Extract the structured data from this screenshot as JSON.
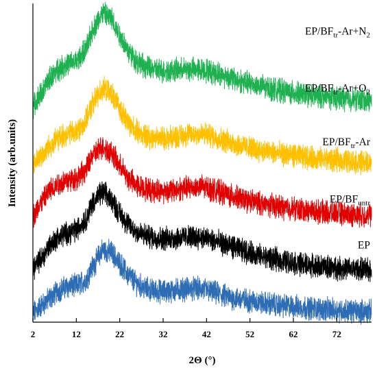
{
  "chart_data": {
    "type": "line",
    "title": "",
    "xlabel": "2Θ (°)",
    "ylabel": "Intensity (arb.units)",
    "xlim": [
      2,
      80
    ],
    "x_ticks": [
      2,
      12,
      22,
      32,
      42,
      52,
      62,
      72
    ],
    "x_tick_labels": [
      "2",
      "12",
      "22",
      "32",
      "42",
      "52",
      "62",
      "72"
    ],
    "y_ticks": "none",
    "grid": false,
    "legend": "none",
    "series": [
      {
        "name": "EP",
        "label": {
          "base": "EP",
          "sub": "",
          "post": ""
        },
        "color": "#2e6db4",
        "offset": 0,
        "x": [
          2,
          4,
          6,
          8,
          10,
          12,
          14,
          16,
          18,
          20,
          22,
          24,
          26,
          28,
          30,
          32,
          34,
          36,
          38,
          40,
          42,
          44,
          46,
          48,
          50,
          52,
          56,
          60,
          64,
          68,
          72,
          76,
          80
        ],
        "y": [
          0.5,
          1.6,
          2.6,
          3.7,
          4.2,
          4.3,
          5.0,
          7.2,
          9.3,
          9.0,
          7.4,
          5.8,
          4.6,
          3.9,
          3.6,
          3.5,
          3.6,
          3.8,
          3.9,
          3.9,
          3.7,
          3.3,
          2.9,
          2.6,
          2.4,
          2.2,
          1.8,
          1.5,
          1.3,
          1.1,
          0.9,
          0.8,
          0.7
        ]
      },
      {
        "name": "EP/BFuntr",
        "label": {
          "base": "EP/BF",
          "sub": "untr",
          "post": ""
        },
        "color": "#000000",
        "offset": 5.6,
        "x": [
          2,
          4,
          6,
          8,
          10,
          12,
          14,
          16,
          18,
          20,
          22,
          24,
          26,
          28,
          30,
          32,
          34,
          36,
          38,
          40,
          42,
          44,
          46,
          48,
          50,
          52,
          56,
          60,
          64,
          68,
          72,
          76,
          80
        ],
        "y": [
          1.2,
          2.5,
          4.5,
          5.5,
          6.1,
          6.5,
          7.8,
          10.5,
          11.7,
          10.8,
          8.8,
          7.2,
          6.2,
          5.7,
          5.4,
          5.3,
          5.3,
          5.4,
          5.5,
          5.5,
          5.3,
          4.9,
          4.5,
          4.1,
          3.7,
          3.3,
          2.6,
          2.1,
          1.7,
          1.4,
          1.2,
          1.0,
          0.9
        ]
      },
      {
        "name": "EP/BFtr-Ar",
        "label": {
          "base": "EP/BF",
          "sub": "tr",
          "post": "-Ar"
        },
        "color": "#e00000",
        "offset": 13,
        "x": [
          2,
          4,
          6,
          8,
          10,
          12,
          14,
          16,
          18,
          20,
          22,
          24,
          26,
          28,
          30,
          32,
          34,
          36,
          38,
          40,
          42,
          44,
          46,
          48,
          50,
          52,
          56,
          60,
          64,
          68,
          72,
          76,
          80
        ],
        "y": [
          1.0,
          3.0,
          4.7,
          5.6,
          6.0,
          6.3,
          7.3,
          9.6,
          10.7,
          9.9,
          8.0,
          6.3,
          5.3,
          4.8,
          4.6,
          4.5,
          4.6,
          4.8,
          5.0,
          5.1,
          5.0,
          4.6,
          4.2,
          3.8,
          3.4,
          3.1,
          2.6,
          2.2,
          1.9,
          1.6,
          1.4,
          1.2,
          1.1
        ]
      },
      {
        "name": "EP/BFtr-Ar+O2",
        "label": {
          "base": "EP/BF",
          "sub": "tr",
          "post": "-Ar+O",
          "sub2": "2"
        },
        "color": "#ffc000",
        "offset": 20.8,
        "x": [
          2,
          4,
          6,
          8,
          10,
          12,
          14,
          16,
          18,
          20,
          22,
          24,
          26,
          28,
          30,
          32,
          34,
          36,
          38,
          40,
          42,
          44,
          46,
          48,
          50,
          52,
          56,
          60,
          64,
          68,
          72,
          76,
          80
        ],
        "y": [
          0.4,
          1.6,
          3.1,
          4.1,
          4.7,
          5.0,
          6.2,
          9.2,
          11.0,
          10.3,
          8.2,
          6.2,
          5.0,
          4.4,
          4.2,
          4.1,
          4.2,
          4.4,
          4.6,
          4.7,
          4.6,
          4.2,
          3.8,
          3.4,
          3.0,
          2.7,
          2.2,
          1.8,
          1.5,
          1.2,
          1.0,
          0.8,
          0.6
        ]
      },
      {
        "name": "EP/BFtr-Ar+N2",
        "label": {
          "base": "EP/BF",
          "sub": "tr",
          "post": "-Ar+N",
          "sub2": "2"
        },
        "color": "#1fb151",
        "offset": 29,
        "x": [
          2,
          4,
          6,
          8,
          10,
          12,
          14,
          16,
          18,
          20,
          22,
          24,
          26,
          28,
          30,
          32,
          34,
          36,
          38,
          40,
          42,
          44,
          46,
          48,
          50,
          52,
          56,
          60,
          64,
          68,
          72,
          76,
          80
        ],
        "y": [
          0.3,
          2.2,
          4.3,
          5.6,
          6.2,
          6.6,
          8.0,
          11.3,
          13.3,
          12.6,
          10.3,
          8.0,
          6.6,
          5.8,
          5.4,
          5.3,
          5.3,
          5.4,
          5.5,
          5.5,
          5.3,
          5.0,
          4.6,
          4.2,
          3.8,
          3.5,
          2.9,
          2.4,
          2.0,
          1.7,
          1.5,
          1.3,
          1.2
        ]
      }
    ]
  }
}
